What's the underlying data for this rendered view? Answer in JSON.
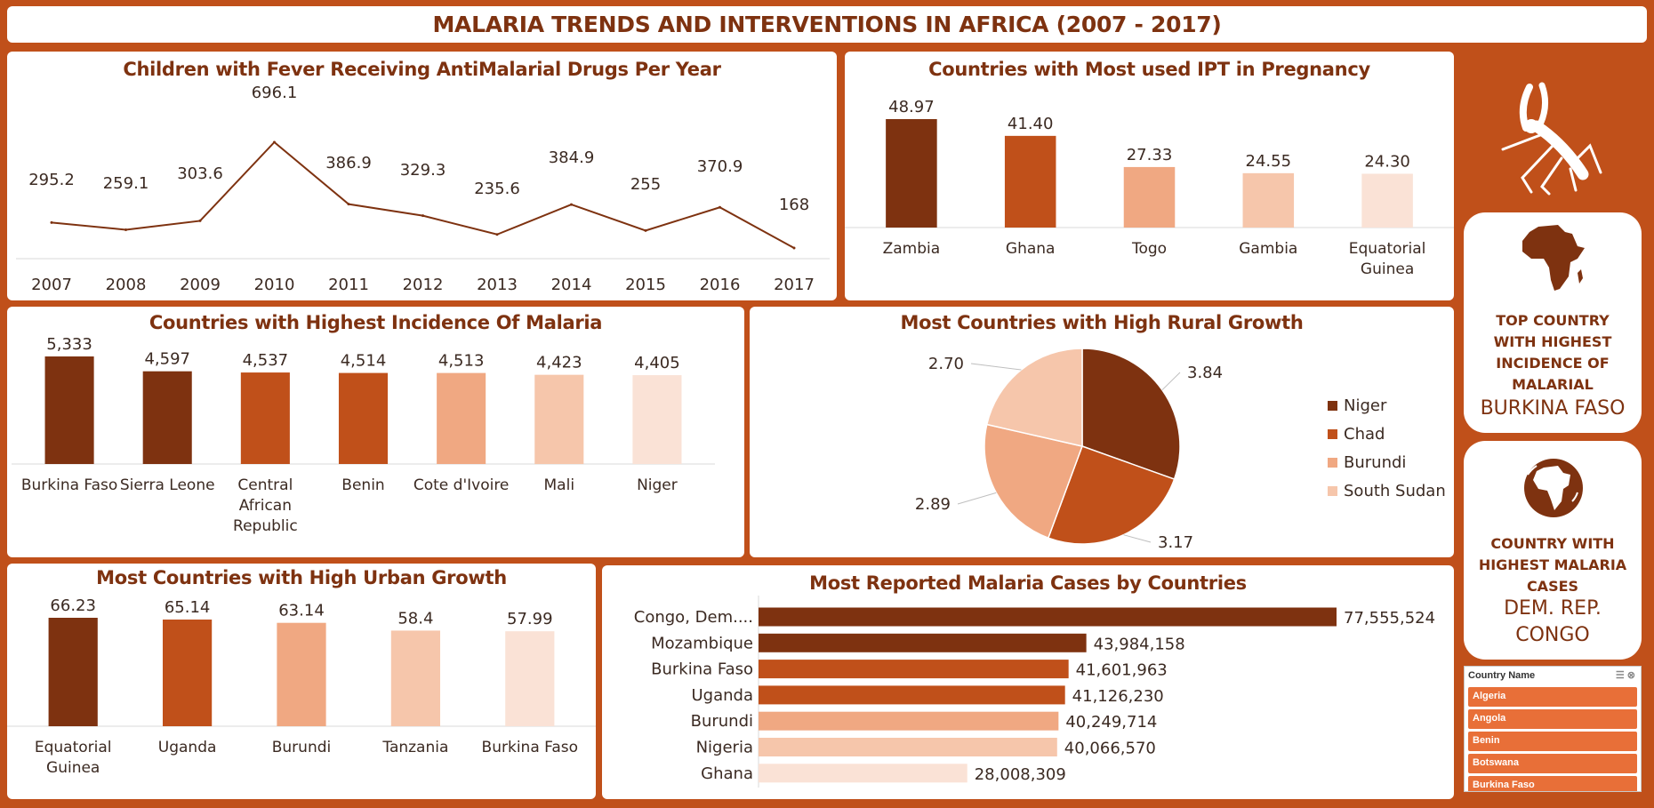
{
  "title": "MALARIA TRENDS AND INTERVENTIONS IN AFRICA (2007 - 2017)",
  "colors": {
    "background": "#c0501a",
    "dark": "#7e3210",
    "medium": "#c0501a",
    "light": "#f0a882",
    "lighter": "#f6c6ab",
    "lightest": "#fae2d6",
    "line": "#7e3210"
  },
  "icons": {
    "mosquito": "mosquito-icon",
    "africa": "africa-map-icon",
    "globe": "globe-africa-icon",
    "filter": "multi-select-icon",
    "clear_filter": "clear-filter-icon"
  },
  "cards": {
    "top_incidence": {
      "title": "TOP COUNTRY WITH HIGHEST INCIDENCE OF MALARIAL",
      "value": "BURKINA FASO"
    },
    "top_cases": {
      "title": "COUNTRY WITH HIGHEST MALARIA CASES",
      "value": "DEM. REP. CONGO"
    }
  },
  "slicer": {
    "header": "Country Name",
    "items": [
      "Algeria",
      "Angola",
      "Benin",
      "Botswana",
      "Burkina Faso"
    ]
  },
  "chart_data": [
    {
      "id": "fever",
      "type": "line",
      "title": "Children with Fever Receiving AntiMalarial Drugs Per Year",
      "categories": [
        "2007",
        "2008",
        "2009",
        "2010",
        "2011",
        "2012",
        "2013",
        "2014",
        "2015",
        "2016",
        "2017"
      ],
      "values": [
        295.2,
        259.1,
        303.6,
        696.1,
        386.9,
        329.3,
        235.6,
        384.9,
        255,
        370.9,
        168
      ],
      "labels": [
        "295.2",
        "259.1",
        "303.6",
        "696.1",
        "386.9",
        "329.3",
        "235.6",
        "384.9",
        "255",
        "370.9",
        "168"
      ]
    },
    {
      "id": "ipt",
      "type": "bar",
      "title": "Countries with Most used IPT in Pregnancy",
      "categories": [
        "Zambia",
        "Ghana",
        "Togo",
        "Gambia",
        "Equatorial Guinea"
      ],
      "values": [
        48.97,
        41.4,
        27.33,
        24.55,
        24.3
      ],
      "labels": [
        "48.97",
        "41.40",
        "27.33",
        "24.55",
        "24.30"
      ]
    },
    {
      "id": "incidence",
      "type": "bar",
      "title": "Countries with Highest Incidence Of Malaria",
      "categories": [
        "Burkina Faso",
        "Sierra Leone",
        "Central African Republic",
        "Benin",
        "Cote d'Ivoire",
        "Mali",
        "Niger"
      ],
      "values": [
        5333,
        4597,
        4537,
        4514,
        4513,
        4423,
        4405
      ],
      "labels": [
        "5,333",
        "4,597",
        "4,537",
        "4,514",
        "4,513",
        "4,423",
        "4,405"
      ]
    },
    {
      "id": "rural",
      "type": "pie",
      "title": "Most Countries with High Rural Growth",
      "categories": [
        "Niger",
        "Chad",
        "Burundi",
        "South Sudan"
      ],
      "values": [
        3.84,
        3.17,
        2.89,
        2.7
      ],
      "labels": [
        "3.84",
        "3.17",
        "2.89",
        "2.70"
      ],
      "legend": "right"
    },
    {
      "id": "urban",
      "type": "bar",
      "title": "Most Countries with High Urban Growth",
      "categories": [
        "Equatorial Guinea",
        "Uganda",
        "Burundi",
        "Tanzania",
        "Burkina Faso"
      ],
      "values": [
        66.23,
        65.14,
        63.14,
        58.4,
        57.99
      ],
      "labels": [
        "66.23",
        "65.14",
        "63.14",
        "58.4",
        "57.99"
      ]
    },
    {
      "id": "cases",
      "type": "bar",
      "orientation": "horizontal",
      "title": "Most Reported Malaria Cases by Countries",
      "categories": [
        "Congo, Dem....",
        "Mozambique",
        "Burkina Faso",
        "Uganda",
        "Burundi",
        "Nigeria",
        "Ghana"
      ],
      "values": [
        77555524,
        43984158,
        41601963,
        41126230,
        40249714,
        40066570,
        28008309
      ],
      "labels": [
        "77,555,524",
        "43,984,158",
        "41,601,963",
        "41,126,230",
        "40,249,714",
        "40,066,570",
        "28,008,309"
      ]
    }
  ]
}
